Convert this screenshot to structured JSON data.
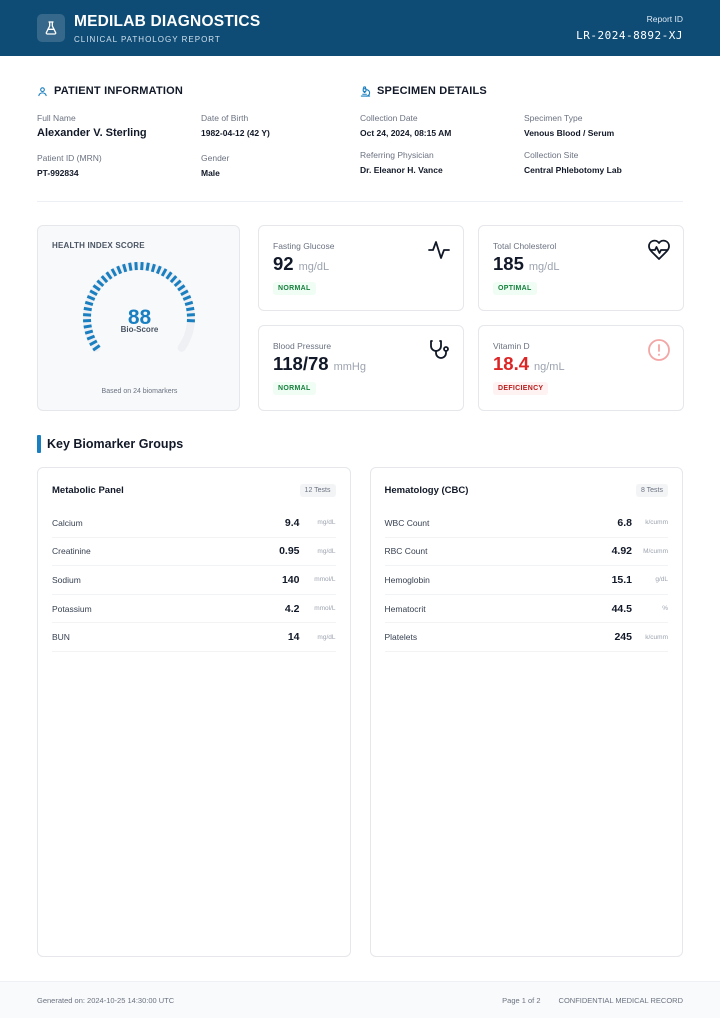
{
  "header": {
    "brand_name": "MEDILAB DIAGNOSTICS",
    "brand_sub": "CLINICAL PATHOLOGY REPORT",
    "report_id_label": "Report ID",
    "report_id": "LR-2024-8892-XJ",
    "logo_icon": "flask-icon"
  },
  "patient": {
    "title": "PATIENT INFORMATION",
    "icon": "user-icon",
    "full_name_label": "Full Name",
    "full_name": "Alexander V. Sterling",
    "dob_label": "Date of Birth",
    "dob": "1982-04-12 (42 Y)",
    "mrn_label": "Patient ID (MRN)",
    "mrn": "PT-992834",
    "gender_label": "Gender",
    "gender": "Male"
  },
  "specimen": {
    "title": "SPECIMEN DETAILS",
    "icon": "microscope-icon",
    "collection_date_label": "Collection Date",
    "collection_date": "Oct 24, 2024, 08:15 AM",
    "type_label": "Specimen Type",
    "type": "Venous Blood / Serum",
    "physician_label": "Referring Physician",
    "physician": "Dr. Eleanor H. Vance",
    "site_label": "Collection Site",
    "site": "Central Phlebotomy Lab"
  },
  "score": {
    "title": "HEALTH INDEX SCORE",
    "value": "88",
    "fraction": 0.88,
    "sub": "Bio-Score",
    "foot": "Based on 24 biomarkers",
    "color": "#1a7fc0"
  },
  "metrics": {
    "glucose": {
      "label": "Fasting Glucose",
      "value": "92",
      "unit": "mg/dL",
      "status": "NORMAL",
      "icon": "pulse-icon"
    },
    "cholesterol": {
      "label": "Total Cholesterol",
      "value": "185",
      "unit": "mg/dL",
      "status": "OPTIMAL",
      "icon": "heart-pulse-icon"
    },
    "bp": {
      "label": "Blood Pressure",
      "value": "118/78",
      "unit": "mmHg",
      "status": "NORMAL",
      "icon": "stethoscope-icon"
    },
    "vitd": {
      "label": "Vitamin D",
      "value": "18.4",
      "unit": "ng/mL",
      "status": "DEFICIENCY",
      "icon": "alert-circle-icon"
    }
  },
  "groups": {
    "title": "Key Biomarker Groups",
    "metabolic": {
      "title": "Metabolic Panel",
      "count": "12 Tests",
      "rows": [
        {
          "name": "Calcium",
          "value": "9.4",
          "unit": "mg/dL"
        },
        {
          "name": "Creatinine",
          "value": "0.95",
          "unit": "mg/dL"
        },
        {
          "name": "Sodium",
          "value": "140",
          "unit": "mmol/L"
        },
        {
          "name": "Potassium",
          "value": "4.2",
          "unit": "mmol/L"
        },
        {
          "name": "BUN",
          "value": "14",
          "unit": "mg/dL"
        }
      ]
    },
    "hematology": {
      "title": "Hematology (CBC)",
      "count": "8 Tests",
      "rows": [
        {
          "name": "WBC Count",
          "value": "6.8",
          "unit": "k/cumm"
        },
        {
          "name": "RBC Count",
          "value": "4.92",
          "unit": "M/cumm"
        },
        {
          "name": "Hemoglobin",
          "value": "15.1",
          "unit": "g/dL"
        },
        {
          "name": "Hematocrit",
          "value": "44.5",
          "unit": "%"
        },
        {
          "name": "Platelets",
          "value": "245",
          "unit": "k/cumm"
        }
      ]
    }
  },
  "footer": {
    "generated": "Generated on: 2024-10-25 14:30:00 UTC",
    "page": "Page 1 of 2",
    "confidential": "CONFIDENTIAL MEDICAL RECORD"
  }
}
